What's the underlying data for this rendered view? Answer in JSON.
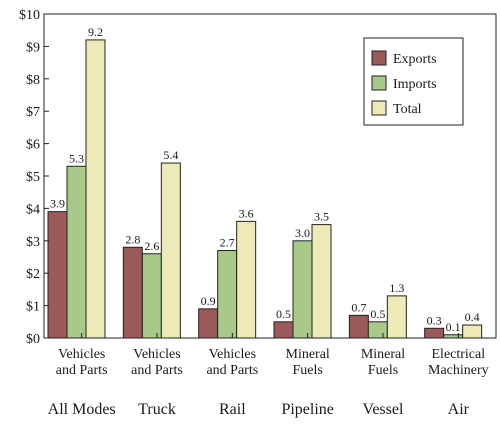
{
  "chart_data": {
    "type": "bar",
    "ylim": [
      0,
      10
    ],
    "yticks": [
      "$0",
      "$1",
      "$2",
      "$3",
      "$4",
      "$5",
      "$6",
      "$7",
      "$8",
      "$9",
      "$10"
    ],
    "groups": [
      {
        "category_lines": [
          "Vehicles",
          "and Parts"
        ],
        "mode": "All Modes"
      },
      {
        "category_lines": [
          "Vehicles",
          "and Parts"
        ],
        "mode": "Truck"
      },
      {
        "category_lines": [
          "Vehicles",
          "and Parts"
        ],
        "mode": "Rail"
      },
      {
        "category_lines": [
          "Mineral",
          "Fuels"
        ],
        "mode": "Pipeline"
      },
      {
        "category_lines": [
          "Mineral",
          "Fuels"
        ],
        "mode": "Vessel"
      },
      {
        "category_lines": [
          "Electrical",
          "Machinery"
        ],
        "mode": "Air"
      }
    ],
    "series": [
      {
        "name": "Exports",
        "color": "#9b5a5a",
        "values": [
          3.9,
          2.8,
          0.9,
          0.5,
          0.7,
          0.3
        ],
        "labels": [
          "3.9",
          "2.8",
          "0.9",
          "0.5",
          "0.7",
          "0.3"
        ]
      },
      {
        "name": "Imports",
        "color": "#a9c98a",
        "values": [
          5.3,
          2.6,
          2.7,
          3.0,
          0.5,
          0.1
        ],
        "labels": [
          "5.3",
          "2.6",
          "2.7",
          "3.0",
          "0.5",
          "0.1"
        ]
      },
      {
        "name": "Total",
        "color": "#eeeab8",
        "values": [
          9.2,
          5.4,
          3.6,
          3.5,
          1.3,
          0.4
        ],
        "labels": [
          "9.2",
          "5.4",
          "3.6",
          "3.5",
          "1.3",
          "0.4"
        ]
      }
    ],
    "legend_position": "top-right",
    "grid": false
  }
}
